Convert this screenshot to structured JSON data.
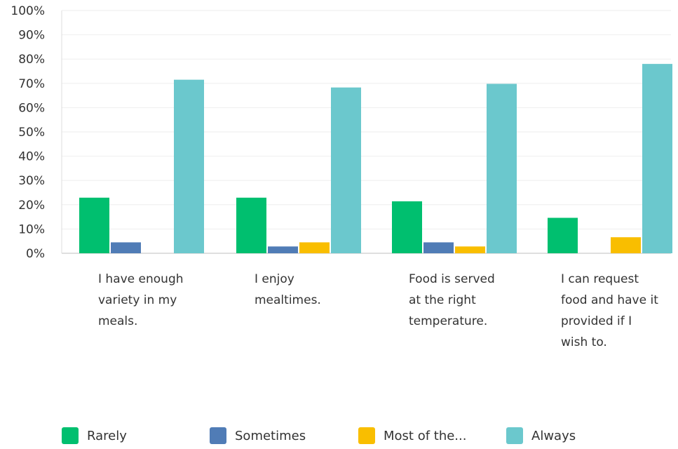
{
  "chart_data": {
    "type": "bar",
    "categories": [
      [
        "I have enough",
        "variety in my",
        "meals."
      ],
      [
        "I enjoy",
        "mealtimes."
      ],
      [
        "Food is served",
        "at the right",
        "temperature."
      ],
      [
        "I can request",
        "food and have it",
        "provided if I",
        "wish to."
      ]
    ],
    "series": [
      {
        "name": "Rarely",
        "color": "#00bf6f",
        "values": [
          22.9,
          22.9,
          21.4,
          14.6
        ]
      },
      {
        "name": "Sometimes",
        "color": "#507cb6",
        "values": [
          4.5,
          2.8,
          4.5,
          0
        ]
      },
      {
        "name": "Most of the...",
        "color": "#f9be00",
        "values": [
          0,
          4.5,
          2.8,
          6.6
        ]
      },
      {
        "name": "Always",
        "color": "#6bc8cd",
        "values": [
          71.5,
          68.3,
          69.8,
          78.0
        ]
      }
    ],
    "ylim": [
      0,
      100
    ],
    "yticks": [
      "0%",
      "10%",
      "20%",
      "30%",
      "40%",
      "50%",
      "60%",
      "70%",
      "80%",
      "90%",
      "100%"
    ],
    "grid": true,
    "legend_position": "bottom"
  }
}
